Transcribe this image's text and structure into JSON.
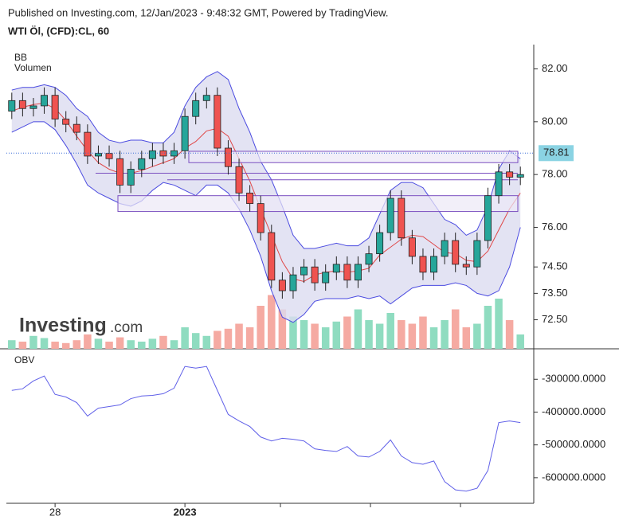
{
  "header": {
    "published": "Published on Investing.com, 12/Jan/2023 - 9:48:32 GMT, Powered by TradingView.",
    "symbol": "WTI Öl, (CFD):CL, 60"
  },
  "watermark": [
    "Investing",
    ".com"
  ],
  "chart_data": [
    {
      "type": "candlestick",
      "legend": [
        "BB",
        "Volumen"
      ],
      "categories": [
        null,
        null,
        null,
        null,
        "28",
        null,
        null,
        null,
        null,
        null,
        null,
        null,
        null,
        null,
        null,
        null,
        "2023",
        null,
        null,
        null,
        null,
        null,
        null,
        null,
        null,
        null,
        null,
        null,
        null,
        null,
        null,
        null,
        null,
        null,
        null,
        null,
        null,
        null,
        null,
        null,
        null,
        null,
        null,
        null,
        null,
        null,
        null,
        null
      ],
      "open": [
        80.4,
        80.8,
        80.5,
        80.6,
        81.0,
        80.1,
        79.9,
        79.6,
        78.7,
        78.8,
        78.6,
        77.6,
        78.2,
        78.6,
        78.9,
        78.7,
        78.9,
        80.2,
        80.8,
        81.0,
        79.0,
        78.3,
        77.3,
        76.9,
        75.8,
        74.0,
        73.6,
        74.2,
        74.5,
        73.9,
        74.3,
        74.6,
        74.0,
        74.6,
        75.0,
        75.8,
        77.1,
        75.6,
        74.9,
        74.3,
        74.9,
        75.5,
        74.6,
        74.5,
        75.5,
        77.2,
        78.1,
        77.9
      ],
      "high": [
        81.1,
        81.1,
        80.9,
        81.3,
        81.3,
        80.4,
        80.2,
        79.9,
        79.1,
        79.1,
        78.9,
        78.5,
        78.9,
        79.2,
        79.2,
        79.2,
        80.5,
        81.1,
        81.3,
        81.3,
        79.3,
        78.6,
        77.6,
        77.2,
        76.1,
        74.3,
        74.5,
        74.8,
        74.8,
        74.6,
        74.9,
        74.9,
        74.9,
        75.3,
        76.1,
        77.4,
        77.4,
        75.9,
        75.2,
        75.2,
        75.8,
        75.8,
        74.9,
        75.8,
        77.5,
        78.4,
        78.4,
        78.3
      ],
      "low": [
        80.1,
        80.2,
        80.2,
        80.3,
        79.8,
        79.6,
        79.3,
        78.4,
        78.4,
        78.3,
        77.3,
        77.3,
        77.9,
        78.3,
        78.4,
        78.4,
        78.6,
        79.9,
        80.5,
        78.7,
        78.0,
        77.0,
        76.6,
        75.5,
        73.7,
        73.3,
        73.3,
        73.9,
        73.6,
        73.6,
        74.0,
        73.7,
        73.7,
        74.3,
        74.7,
        75.5,
        75.3,
        74.6,
        74.0,
        74.0,
        74.6,
        74.3,
        74.2,
        74.2,
        75.2,
        76.9,
        77.6,
        77.6
      ],
      "close": [
        80.8,
        80.5,
        80.6,
        81.0,
        80.1,
        79.9,
        79.6,
        78.7,
        78.8,
        78.6,
        77.6,
        78.2,
        78.6,
        78.9,
        78.7,
        78.9,
        80.2,
        80.8,
        81.0,
        79.0,
        78.3,
        77.3,
        76.9,
        75.8,
        74.0,
        73.6,
        74.2,
        74.5,
        73.9,
        74.3,
        74.6,
        74.0,
        74.6,
        75.0,
        75.8,
        77.1,
        75.6,
        74.9,
        74.3,
        74.9,
        75.5,
        74.6,
        74.5,
        75.5,
        77.2,
        78.1,
        77.9,
        78.0
      ],
      "up_color": "#26a69a",
      "down_color": "#ef5350",
      "bb": {
        "color": "#4a4ae0",
        "middle_color": "#e04848",
        "fill": "#dcdcf0",
        "upper": [
          81.2,
          81.3,
          81.3,
          81.4,
          81.3,
          81.0,
          80.5,
          80.2,
          79.6,
          79.3,
          79.2,
          79.3,
          79.3,
          79.2,
          79.2,
          79.6,
          80.6,
          81.3,
          81.7,
          81.9,
          81.6,
          80.5,
          79.6,
          78.5,
          77.8,
          76.8,
          75.7,
          75.2,
          75.2,
          75.3,
          75.4,
          75.3,
          75.3,
          75.6,
          76.5,
          77.4,
          77.7,
          77.7,
          77.5,
          76.9,
          76.3,
          76.1,
          75.7,
          75.9,
          76.8,
          78.2,
          78.9,
          78.6
        ],
        "middle": [
          80.4,
          80.55,
          80.65,
          80.7,
          80.5,
          80.05,
          79.45,
          78.9,
          78.45,
          78.2,
          78.05,
          78.05,
          78.15,
          78.3,
          78.45,
          78.6,
          79.0,
          79.25,
          79.65,
          79.75,
          79.45,
          78.6,
          77.75,
          76.7,
          75.7,
          74.7,
          74.05,
          73.95,
          74.2,
          74.3,
          74.35,
          74.3,
          74.35,
          74.45,
          74.95,
          75.25,
          75.55,
          75.7,
          75.65,
          75.35,
          75.05,
          75.0,
          74.75,
          74.7,
          75.1,
          75.9,
          76.7,
          77.3
        ],
        "lower": [
          79.6,
          79.8,
          80.0,
          80.0,
          79.7,
          79.1,
          78.4,
          77.6,
          77.3,
          77.1,
          76.9,
          76.8,
          77.0,
          77.4,
          77.7,
          77.6,
          77.4,
          77.2,
          77.6,
          77.6,
          77.3,
          76.7,
          75.9,
          74.9,
          73.6,
          72.6,
          72.4,
          72.7,
          73.2,
          73.3,
          73.3,
          73.3,
          73.4,
          73.3,
          73.4,
          73.1,
          73.4,
          73.7,
          73.8,
          73.8,
          73.8,
          73.9,
          73.8,
          73.5,
          73.4,
          73.6,
          74.5,
          76.0
        ]
      },
      "volume": {
        "lim": [
          0,
          100
        ],
        "up_color": "#8fdcc0",
        "down_color": "#f5aaa2",
        "values": [
          12,
          10,
          18,
          15,
          10,
          8,
          12,
          20,
          14,
          10,
          16,
          12,
          10,
          14,
          18,
          12,
          30,
          22,
          18,
          25,
          28,
          35,
          30,
          60,
          75,
          55,
          45,
          40,
          35,
          30,
          38,
          45,
          55,
          40,
          35,
          50,
          40,
          35,
          45,
          30,
          40,
          55,
          30,
          35,
          60,
          70,
          40,
          20
        ]
      },
      "zones": [
        {
          "from": 78.45,
          "to": 78.88
        },
        {
          "from": 76.6,
          "to": 77.2
        }
      ],
      "levels": [
        78.05,
        77.8
      ],
      "level_color": "#7b4fc0",
      "last_price": 78.81,
      "last_price_color": "#8ad3e3",
      "ylim": [
        71.4,
        82.8
      ],
      "yticks": [
        {
          "value": 82,
          "label": "82.00"
        },
        {
          "value": 80,
          "label": "80.00"
        },
        {
          "value": 78,
          "label": "78.00"
        },
        {
          "value": 76,
          "label": "76.00"
        },
        {
          "value": 74.5,
          "label": "74.50"
        },
        {
          "value": 73.5,
          "label": "73.50"
        },
        {
          "value": 72.5,
          "label": "72.50"
        }
      ]
    },
    {
      "type": "line",
      "legend": "OBV",
      "color": "#6060e8",
      "values": [
        -334000,
        -329000,
        -305000,
        -290000,
        -346000,
        -354000,
        -371000,
        -412000,
        -388000,
        -383000,
        -378000,
        -359000,
        -351000,
        -349000,
        -344000,
        -327000,
        -261000,
        -266000,
        -261000,
        -334000,
        -407000,
        -427000,
        -444000,
        -476000,
        -488000,
        -480000,
        -483000,
        -488000,
        -512000,
        -517000,
        -520000,
        -505000,
        -534000,
        -537000,
        -520000,
        -485000,
        -534000,
        -554000,
        -559000,
        -549000,
        -612000,
        -637000,
        -641000,
        -632000,
        -578000,
        -432000,
        -427000,
        -432000
      ],
      "ylim": [
        -678000,
        -212000
      ],
      "yticks": [
        {
          "value": -300000,
          "label": "-300000.0000"
        },
        {
          "value": -400000,
          "label": "-400000.0000"
        },
        {
          "value": -500000,
          "label": "-500000.0000"
        },
        {
          "value": -600000,
          "label": "-600000.0000"
        }
      ]
    }
  ]
}
